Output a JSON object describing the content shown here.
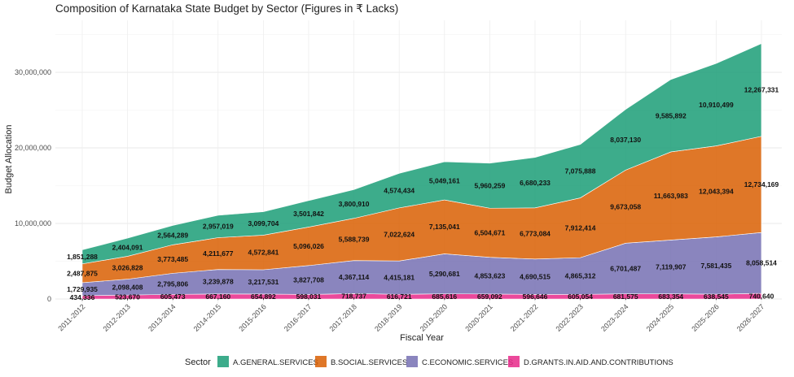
{
  "chart_data": {
    "type": "area",
    "stacked": true,
    "title": "Composition of Karnataka State Budget by Sector (Figures in ₹ Lacks)",
    "xlabel": "Fiscal Year",
    "ylabel": "Budget Allocation",
    "ylim": [
      0,
      36000000
    ],
    "yticks": [
      0,
      10000000,
      20000000,
      30000000
    ],
    "ytick_labels": [
      "0",
      "10,000,000",
      "20,000,000",
      "30,000,000"
    ],
    "grid": true,
    "legend_position": "bottom",
    "legend_title": "Sector",
    "categories": [
      "2011-2012",
      "2012-2013",
      "2013-2014",
      "2014-2015",
      "2015-2016",
      "2016-2017",
      "2017-2018",
      "2018-2019",
      "2019-2020",
      "2020-2021",
      "2021-2022",
      "2022-2023",
      "2023-2024",
      "2024-2025",
      "2025-2026",
      "2026-2027"
    ],
    "series": [
      {
        "name": "D.GRANTS.IN.AID.AND.CONTRIBUTIONS",
        "color": "#e7298a",
        "values": [
          434336,
          523670,
          605473,
          667160,
          654892,
          598031,
          718737,
          616721,
          685616,
          659092,
          596646,
          605054,
          681575,
          683354,
          638545,
          740640
        ]
      },
      {
        "name": "C.ECONOMIC.SERVICES",
        "color": "#7570b3",
        "values": [
          1729935,
          2098408,
          2795806,
          3239878,
          3217531,
          3827708,
          4367114,
          4415181,
          5290681,
          4853623,
          4690515,
          4865312,
          6701487,
          7119907,
          7581435,
          8058514
        ]
      },
      {
        "name": "B.SOCIAL.SERVICES",
        "color": "#d95f02",
        "values": [
          2487875,
          3026828,
          3773485,
          4211677,
          4572841,
          5096026,
          5588739,
          7022624,
          7135041,
          6504671,
          6773084,
          7912414,
          9673058,
          11663983,
          12043394,
          12734169
        ]
      },
      {
        "name": "A.GENERAL.SERVICES",
        "color": "#1b9e77",
        "values": [
          1851288,
          2404091,
          2564289,
          2957019,
          3099704,
          3501842,
          3800910,
          4574434,
          5049161,
          5960259,
          6680233,
          7075888,
          8037130,
          9585892,
          10910499,
          12267331
        ]
      }
    ],
    "series_labels": [
      [
        "434,336",
        "523,670",
        "605,473",
        "667,160",
        "654,892",
        "598,031",
        "718,737",
        "616,721",
        "685,616",
        "659,092",
        "596,646",
        "605,054",
        "681,575",
        "683,354",
        "638,545",
        "740,640"
      ],
      [
        "1,729,935",
        "2,098,408",
        "2,795,806",
        "3,239,878",
        "3,217,531",
        "3,827,708",
        "4,367,114",
        "4,415,181",
        "5,290,681",
        "4,853,623",
        "4,690,515",
        "4,865,312",
        "6,701,487",
        "7,119,907",
        "7,581,435",
        "8,058,514"
      ],
      [
        "2,487,875",
        "3,026,828",
        "3,773,485",
        "4,211,677",
        "4,572,841",
        "5,096,026",
        "5,588,739",
        "7,022,624",
        "7,135,041",
        "6,504,671",
        "6,773,084",
        "7,912,414",
        "9,673,058",
        "11,663,983",
        "12,043,394",
        "12,734,169"
      ],
      [
        "1,851,288",
        "2,404,091",
        "2,564,289",
        "2,957,019",
        "3,099,704",
        "3,501,842",
        "3,800,910",
        "4,574,434",
        "5,049,161",
        "5,960,259",
        "6,680,233",
        "7,075,888",
        "8,037,130",
        "9,585,892",
        "10,910,499",
        "12,267,331"
      ]
    ],
    "legend_order": [
      "A.GENERAL.SERVICES",
      "B.SOCIAL.SERVICES",
      "C.ECONOMIC.SERVICES",
      "D.GRANTS.IN.AID.AND.CONTRIBUTIONS"
    ]
  }
}
